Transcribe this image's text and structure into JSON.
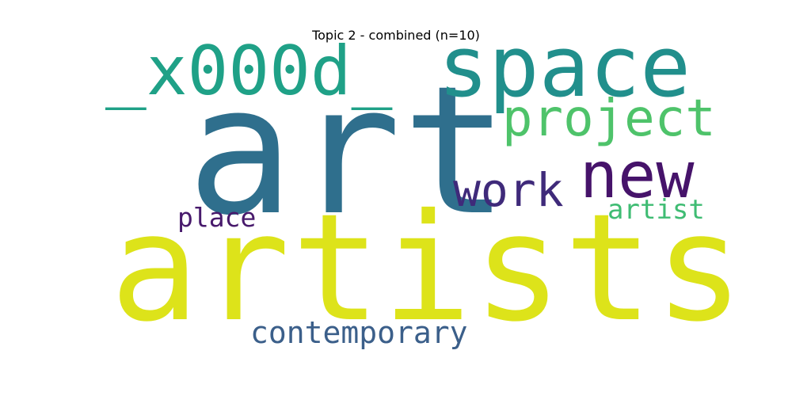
{
  "title": "Topic 2 - combined (n=10)",
  "words": {
    "artists": {
      "text": "artists",
      "color": "#dde31a"
    },
    "art": {
      "text": "art",
      "color": "#2f6f8d"
    },
    "space": {
      "text": "space",
      "color": "#218f8c"
    },
    "x000d": {
      "text": "_x000d_",
      "color": "#1fa187"
    },
    "project": {
      "text": "project",
      "color": "#4ec36a"
    },
    "new": {
      "text": "new",
      "color": "#46136a"
    },
    "work": {
      "text": "work",
      "color": "#3f2a7a"
    },
    "artist": {
      "text": "artist",
      "color": "#3fbc73"
    },
    "place": {
      "text": "place",
      "color": "#481a6c"
    },
    "contemporary": {
      "text": "contemporary",
      "color": "#3b5f8a"
    }
  }
}
